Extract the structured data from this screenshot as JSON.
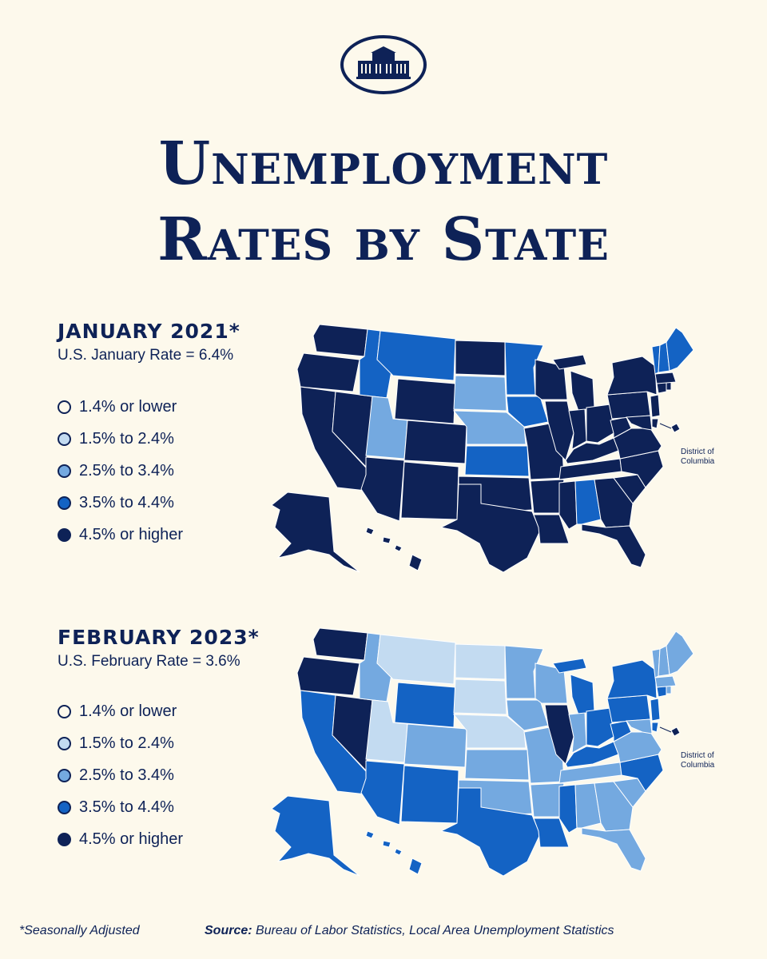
{
  "title_line1": "Unemployment",
  "title_line2": "Rates by State",
  "colors": {
    "background": "#fdf9ec",
    "navy": "#0e2257",
    "bucket_1": "#fdf9ec",
    "bucket_2": "#c3dbf1",
    "bucket_3": "#74a9e0",
    "bucket_4": "#1463c4",
    "bucket_5": "#0e2257"
  },
  "legend": [
    {
      "label": "1.4% or lower",
      "color": "#fdf9ec"
    },
    {
      "label": "1.5% to 2.4%",
      "color": "#c3dbf1"
    },
    {
      "label": "2.5% to 3.4%",
      "color": "#74a9e0"
    },
    {
      "label": "3.5% to 4.4%",
      "color": "#1463c4"
    },
    {
      "label": "4.5% or higher",
      "color": "#0e2257"
    }
  ],
  "panels": [
    {
      "title": "JANUARY 2021*",
      "subtitle": "U.S. January Rate = 6.4%",
      "dc_label_1": "District of",
      "dc_label_2": "Columbia",
      "states": {
        "WA": 5,
        "OR": 5,
        "CA": 5,
        "NV": 5,
        "ID": 4,
        "MT": 4,
        "WY": 5,
        "UT": 3,
        "AZ": 5,
        "CO": 5,
        "NM": 5,
        "ND": 5,
        "SD": 3,
        "NE": 3,
        "KS": 4,
        "OK": 5,
        "TX": 5,
        "MN": 4,
        "IA": 4,
        "MO": 5,
        "AR": 5,
        "LA": 5,
        "WI": 5,
        "IL": 5,
        "MI": 5,
        "IN": 5,
        "OH": 5,
        "KY": 5,
        "TN": 5,
        "MS": 5,
        "AL": 4,
        "GA": 5,
        "FL": 5,
        "SC": 5,
        "NC": 5,
        "VA": 5,
        "WV": 5,
        "PA": 5,
        "NY": 5,
        "NJ": 5,
        "DE": 5,
        "MD": 5,
        "CT": 5,
        "RI": 5,
        "MA": 5,
        "VT": 4,
        "NH": 4,
        "ME": 4,
        "AK": 5,
        "HI": 5,
        "DC": 5
      }
    },
    {
      "title": "FEBRUARY 2023*",
      "subtitle": "U.S. February Rate = 3.6%",
      "dc_label_1": "District of",
      "dc_label_2": "Columbia",
      "states": {
        "WA": 5,
        "OR": 5,
        "CA": 4,
        "NV": 5,
        "ID": 3,
        "MT": 2,
        "WY": 4,
        "UT": 2,
        "AZ": 4,
        "CO": 3,
        "NM": 4,
        "ND": 2,
        "SD": 2,
        "NE": 2,
        "KS": 3,
        "OK": 3,
        "TX": 4,
        "MN": 3,
        "IA": 3,
        "MO": 3,
        "AR": 3,
        "LA": 4,
        "WI": 3,
        "IL": 5,
        "MI": 4,
        "IN": 3,
        "OH": 4,
        "KY": 4,
        "TN": 3,
        "MS": 4,
        "AL": 3,
        "GA": 3,
        "FL": 3,
        "SC": 3,
        "NC": 4,
        "VA": 3,
        "WV": 4,
        "PA": 4,
        "NY": 4,
        "NJ": 4,
        "DE": 4,
        "MD": 3,
        "CT": 4,
        "RI": 3,
        "MA": 3,
        "VT": 3,
        "NH": 3,
        "ME": 3,
        "AK": 4,
        "HI": 4,
        "DC": 5
      }
    }
  ],
  "footnote": "*Seasonally Adjusted",
  "source_label": "Source:",
  "source_text": "Bureau of Labor Statistics, Local Area Unemployment Statistics"
}
